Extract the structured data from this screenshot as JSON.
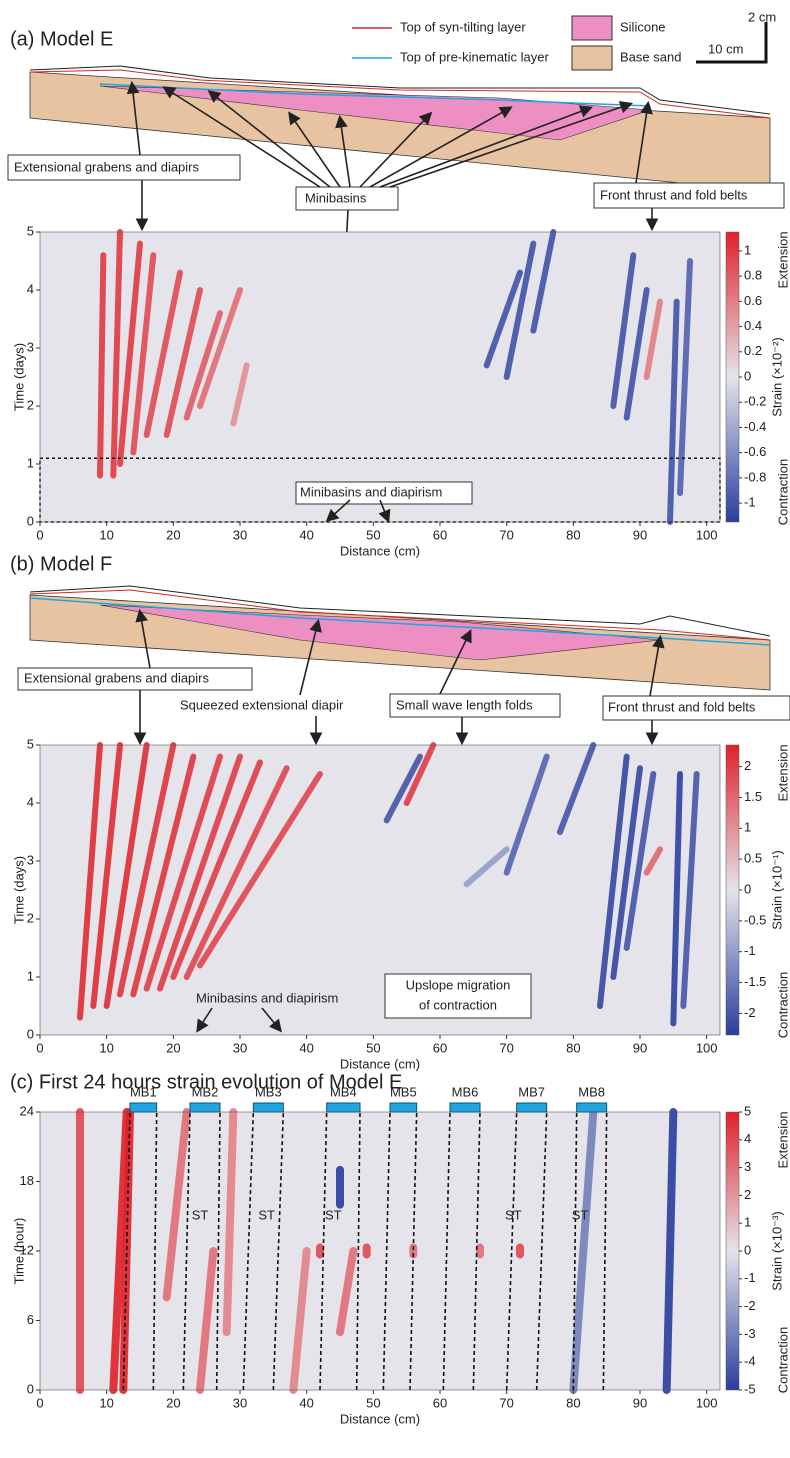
{
  "chart_data": [
    {
      "type": "heatmap",
      "title": "(a) Model E",
      "legend": [
        {
          "name": "Top of syn-tilting layer",
          "color": "#d62728"
        },
        {
          "name": "Top of pre-kinematic layer",
          "color": "#1fa6e0"
        },
        {
          "name": "Silicone",
          "color": "#ee8fc4"
        },
        {
          "name": "Base sand",
          "color": "#e8c3a2"
        }
      ],
      "scale_labels": [
        "2 cm",
        "10 cm"
      ],
      "section_labels": [
        "Extensional grabens and diapirs",
        "Minibasins",
        "Front thrust and fold belts"
      ],
      "annotations": [
        "Minibasins and diapirism"
      ],
      "highlight_ylim": [
        0,
        1.1
      ],
      "xlabel": "Distance (cm)",
      "ylabel": "Time (days)",
      "xlim": [
        0,
        102
      ],
      "xticks": [
        0,
        10,
        20,
        30,
        40,
        50,
        60,
        70,
        80,
        90,
        100
      ],
      "ylim": [
        0,
        5
      ],
      "yticks": [
        0,
        1,
        2,
        3,
        4,
        5
      ],
      "clim": [
        -1.15,
        1.15
      ],
      "cticks": [
        1,
        0.8,
        0.6,
        0.4,
        0.2,
        0,
        -0.2,
        -0.4,
        -0.6,
        -0.8,
        -1
      ],
      "colorbar_label": "Strain (×10⁻²)",
      "colorbar_ends": [
        "Extension",
        "Contraction"
      ],
      "colormap": [
        "#2a3d9e",
        "#e4e4ea",
        "#e0202a"
      ],
      "streaks": [
        {
          "x": [
            9,
            9.5
          ],
          "t": [
            0.8,
            4.6
          ],
          "v": 1
        },
        {
          "x": [
            11,
            12
          ],
          "t": [
            0.8,
            5
          ],
          "v": 1
        },
        {
          "x": [
            12,
            15
          ],
          "t": [
            1,
            4.8
          ],
          "v": 1
        },
        {
          "x": [
            14,
            17
          ],
          "t": [
            1.2,
            4.6
          ],
          "v": 0.9
        },
        {
          "x": [
            16,
            21
          ],
          "t": [
            1.5,
            4.3
          ],
          "v": 0.9
        },
        {
          "x": [
            19,
            24
          ],
          "t": [
            1.5,
            4
          ],
          "v": 0.9
        },
        {
          "x": [
            22,
            27
          ],
          "t": [
            1.8,
            3.6
          ],
          "v": 0.8
        },
        {
          "x": [
            24,
            30
          ],
          "t": [
            2,
            4
          ],
          "v": 0.7
        },
        {
          "x": [
            29,
            31
          ],
          "t": [
            1.7,
            2.7
          ],
          "v": 0.5
        },
        {
          "x": [
            67,
            72
          ],
          "t": [
            2.7,
            4.3
          ],
          "v": -1
        },
        {
          "x": [
            70,
            74
          ],
          "t": [
            2.5,
            4.8
          ],
          "v": -1
        },
        {
          "x": [
            74,
            77
          ],
          "t": [
            3.3,
            5
          ],
          "v": -1
        },
        {
          "x": [
            86,
            89
          ],
          "t": [
            2,
            4.6
          ],
          "v": -1
        },
        {
          "x": [
            88,
            91
          ],
          "t": [
            1.8,
            4
          ],
          "v": -1
        },
        {
          "x": [
            94.5,
            95.5
          ],
          "t": [
            0,
            3.8
          ],
          "v": -1
        },
        {
          "x": [
            96,
            97.5
          ],
          "t": [
            0.5,
            4.5
          ],
          "v": -0.9
        },
        {
          "x": [
            91,
            93
          ],
          "t": [
            2.5,
            3.8
          ],
          "v": 0.6
        }
      ]
    },
    {
      "type": "heatmap",
      "title": "(b) Model F",
      "section_labels": [
        "Extensional grabens and diapirs",
        "Squeezed extensional diapir",
        "Small wave length folds",
        "Front thrust and fold belts"
      ],
      "annotations": [
        "Upslope migration",
        "of contraction",
        "Minibasins and diapirism"
      ],
      "xlabel": "Distance (cm)",
      "ylabel": "Time (days)",
      "xlim": [
        0,
        102
      ],
      "xticks": [
        0,
        10,
        20,
        30,
        40,
        50,
        60,
        70,
        80,
        90,
        100
      ],
      "ylim": [
        0,
        5
      ],
      "yticks": [
        0,
        1,
        2,
        3,
        4,
        5
      ],
      "clim": [
        -2.35,
        2.35
      ],
      "cticks": [
        2,
        1.5,
        1,
        0.5,
        0,
        -0.5,
        -1,
        -1.5,
        -2
      ],
      "colorbar_label": "Strain (×10⁻¹)",
      "colorbar_ends": [
        "Extension",
        "Contraction"
      ],
      "colormap": [
        "#2a3d9e",
        "#e4e4ea",
        "#e0202a"
      ],
      "streaks": [
        {
          "x": [
            6,
            9
          ],
          "t": [
            0.3,
            5
          ],
          "v": 2.2
        },
        {
          "x": [
            8,
            12
          ],
          "t": [
            0.5,
            5
          ],
          "v": 2.2
        },
        {
          "x": [
            10,
            16
          ],
          "t": [
            0.5,
            5
          ],
          "v": 2.2
        },
        {
          "x": [
            12,
            20
          ],
          "t": [
            0.7,
            5
          ],
          "v": 2.1
        },
        {
          "x": [
            14,
            23
          ],
          "t": [
            0.7,
            4.8
          ],
          "v": 2.1
        },
        {
          "x": [
            16,
            27
          ],
          "t": [
            0.8,
            4.8
          ],
          "v": 2
        },
        {
          "x": [
            18,
            30
          ],
          "t": [
            0.8,
            4.8
          ],
          "v": 2
        },
        {
          "x": [
            20,
            33
          ],
          "t": [
            1,
            4.7
          ],
          "v": 2
        },
        {
          "x": [
            22,
            37
          ],
          "t": [
            1,
            4.6
          ],
          "v": 1.9
        },
        {
          "x": [
            24,
            42
          ],
          "t": [
            1.2,
            4.5
          ],
          "v": 1.9
        },
        {
          "x": [
            55,
            59
          ],
          "t": [
            4,
            5
          ],
          "v": 2
        },
        {
          "x": [
            52,
            57
          ],
          "t": [
            3.7,
            4.8
          ],
          "v": -2
        },
        {
          "x": [
            64,
            70
          ],
          "t": [
            2.6,
            3.2
          ],
          "v": -1
        },
        {
          "x": [
            70,
            76
          ],
          "t": [
            2.8,
            4.8
          ],
          "v": -1.8
        },
        {
          "x": [
            78,
            83
          ],
          "t": [
            3.5,
            5
          ],
          "v": -2
        },
        {
          "x": [
            84,
            88
          ],
          "t": [
            0.5,
            4.8
          ],
          "v": -2.2
        },
        {
          "x": [
            86,
            90
          ],
          "t": [
            1,
            4.6
          ],
          "v": -2.2
        },
        {
          "x": [
            88,
            92
          ],
          "t": [
            1.5,
            4.5
          ],
          "v": -2
        },
        {
          "x": [
            95,
            96
          ],
          "t": [
            0.2,
            4.5
          ],
          "v": -2.3
        },
        {
          "x": [
            96.5,
            98.5
          ],
          "t": [
            0.5,
            4.5
          ],
          "v": -2
        },
        {
          "x": [
            91,
            93
          ],
          "t": [
            2.8,
            3.2
          ],
          "v": 1.5
        }
      ]
    },
    {
      "type": "heatmap",
      "title": "(c) First 24 hours strain evolution of Model E",
      "minibasins": [
        {
          "label": "MB1",
          "top": [
            13.5,
            17.5
          ],
          "bottom": [
            12.5,
            17
          ]
        },
        {
          "label": "MB2",
          "top": [
            22.5,
            27
          ],
          "bottom": [
            21.5,
            26.5
          ]
        },
        {
          "label": "MB3",
          "top": [
            32,
            36.5
          ],
          "bottom": [
            30.5,
            35
          ]
        },
        {
          "label": "MB4",
          "top": [
            43,
            48
          ],
          "bottom": [
            42,
            47.5
          ]
        },
        {
          "label": "MB5",
          "top": [
            52.5,
            56.5
          ],
          "bottom": [
            51.5,
            55.5
          ]
        },
        {
          "label": "MB6",
          "top": [
            61.5,
            66
          ],
          "bottom": [
            60.5,
            65
          ]
        },
        {
          "label": "MB7",
          "top": [
            71.5,
            76
          ],
          "bottom": [
            70,
            74.5
          ]
        },
        {
          "label": "MB8",
          "top": [
            80.5,
            85
          ],
          "bottom": [
            80,
            84.5
          ]
        }
      ],
      "mb_color": "#1fa6e0",
      "annotations": [
        {
          "text": "ST",
          "x": 24,
          "t": 15
        },
        {
          "text": "ST",
          "x": 34,
          "t": 15
        },
        {
          "text": "ST",
          "x": 44,
          "t": 15
        },
        {
          "text": "ST",
          "x": 71,
          "t": 15
        },
        {
          "text": "ST",
          "x": 81,
          "t": 15
        }
      ],
      "xlabel": "Distance (cm)",
      "ylabel": "Time (hour)",
      "xlim": [
        0,
        102
      ],
      "xticks": [
        0,
        10,
        20,
        30,
        40,
        50,
        60,
        70,
        80,
        90,
        100
      ],
      "ylim": [
        0,
        24
      ],
      "yticks": [
        0,
        6,
        12,
        18,
        24
      ],
      "clim": [
        -5,
        5
      ],
      "cticks": [
        5,
        4,
        3,
        2,
        1,
        0,
        -1,
        -2,
        -3,
        -4,
        -5
      ],
      "colorbar_label": "Strain (×10⁻³)",
      "colorbar_ends": [
        "Extension",
        "Contraction"
      ],
      "colormap": [
        "#2a3d9e",
        "#e4e4ea",
        "#e0202a"
      ],
      "streaks": [
        {
          "x": [
            6,
            6
          ],
          "t": [
            0,
            24
          ],
          "v": 4
        },
        {
          "x": [
            11,
            13
          ],
          "t": [
            0,
            24
          ],
          "v": 5
        },
        {
          "x": [
            12.5,
            13.5
          ],
          "t": [
            0,
            24
          ],
          "v": 5
        },
        {
          "x": [
            19,
            22
          ],
          "t": [
            8,
            24
          ],
          "v": 3
        },
        {
          "x": [
            24,
            26
          ],
          "t": [
            0,
            12
          ],
          "v": 3
        },
        {
          "x": [
            28,
            29
          ],
          "t": [
            5,
            24
          ],
          "v": 2.5
        },
        {
          "x": [
            38,
            40
          ],
          "t": [
            0,
            12
          ],
          "v": 2.5
        },
        {
          "x": [
            45,
            47
          ],
          "t": [
            5,
            12
          ],
          "v": 3
        },
        {
          "x": [
            45,
            45
          ],
          "t": [
            16,
            19
          ],
          "v": -5
        },
        {
          "x": [
            80,
            83
          ],
          "t": [
            0,
            24
          ],
          "v": -3
        },
        {
          "x": [
            94,
            95
          ],
          "t": [
            0,
            24
          ],
          "v": -5
        },
        {
          "x": [
            42,
            42
          ],
          "t": [
            11.7,
            12.3
          ],
          "v": 4
        },
        {
          "x": [
            49,
            49
          ],
          "t": [
            11.7,
            12.3
          ],
          "v": 4
        },
        {
          "x": [
            56,
            56
          ],
          "t": [
            11.7,
            12.3
          ],
          "v": 3
        },
        {
          "x": [
            66,
            66
          ],
          "t": [
            11.7,
            12.3
          ],
          "v": 3
        },
        {
          "x": [
            72,
            72
          ],
          "t": [
            11.7,
            12.3
          ],
          "v": 4
        }
      ]
    }
  ]
}
